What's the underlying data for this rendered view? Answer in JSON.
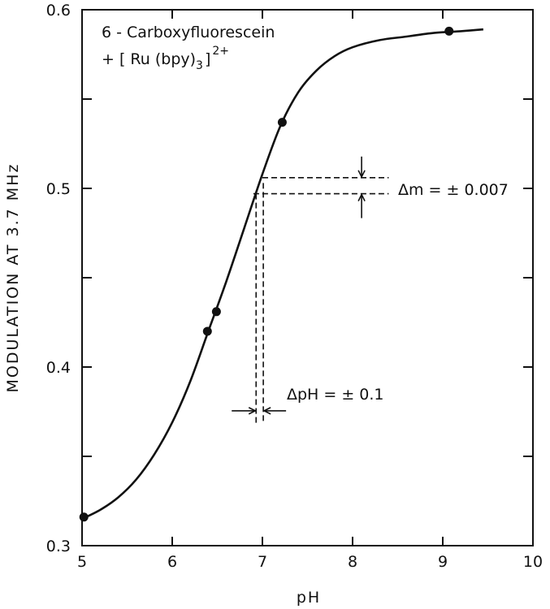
{
  "chart_data": {
    "type": "line",
    "xlabel": "pH",
    "ylabel": "MODULATION  AT  3.7 MHz",
    "xlim": [
      5,
      10
    ],
    "ylim": [
      0.3,
      0.6
    ],
    "x_ticks": [
      "5",
      "6",
      "7",
      "8",
      "9",
      "10"
    ],
    "y_ticks": [
      "0.3",
      "0.4",
      "0.5",
      "0.6"
    ],
    "y_minor_ticks": [
      0.35,
      0.45,
      0.55
    ],
    "grid": false,
    "legend": {
      "placement": "top-left",
      "line1": "6 - Carboxyfluorescein",
      "line2_prefix": "+ [ Ru (bpy)",
      "line2_subscript": "3",
      "line2_close": "]",
      "line2_superscript": "2+"
    },
    "series": [
      {
        "points": [
          {
            "x": 5.02,
            "y": 0.316
          },
          {
            "x": 6.39,
            "y": 0.42
          },
          {
            "x": 6.49,
            "y": 0.431
          },
          {
            "x": 7.22,
            "y": 0.537
          },
          {
            "x": 9.07,
            "y": 0.588
          }
        ],
        "curve": [
          {
            "x": 5.0,
            "y": 0.315
          },
          {
            "x": 5.2,
            "y": 0.32
          },
          {
            "x": 5.4,
            "y": 0.327
          },
          {
            "x": 5.6,
            "y": 0.337
          },
          {
            "x": 5.8,
            "y": 0.351
          },
          {
            "x": 6.0,
            "y": 0.369
          },
          {
            "x": 6.2,
            "y": 0.392
          },
          {
            "x": 6.4,
            "y": 0.42
          },
          {
            "x": 6.6,
            "y": 0.448
          },
          {
            "x": 6.8,
            "y": 0.478
          },
          {
            "x": 7.0,
            "y": 0.508
          },
          {
            "x": 7.2,
            "y": 0.535
          },
          {
            "x": 7.4,
            "y": 0.554
          },
          {
            "x": 7.6,
            "y": 0.566
          },
          {
            "x": 7.8,
            "y": 0.574
          },
          {
            "x": 8.0,
            "y": 0.579
          },
          {
            "x": 8.3,
            "y": 0.583
          },
          {
            "x": 8.6,
            "y": 0.585
          },
          {
            "x": 8.9,
            "y": 0.587
          },
          {
            "x": 9.2,
            "y": 0.588
          },
          {
            "x": 9.45,
            "y": 0.589
          }
        ]
      }
    ],
    "annotations": {
      "delta_m": {
        "text": "Δm = ± 0.007",
        "y_center": 0.5015,
        "half_width": 0.0045,
        "x_start": 6.9,
        "x_end": 8.4,
        "arrow_x": 8.1
      },
      "delta_ph": {
        "text": "ΔpH = ± 0.1",
        "x_center": 6.97,
        "half_width": 0.04,
        "y_top": 0.497,
        "y_bottom": 0.368,
        "arrow_y": 0.3755
      }
    }
  }
}
